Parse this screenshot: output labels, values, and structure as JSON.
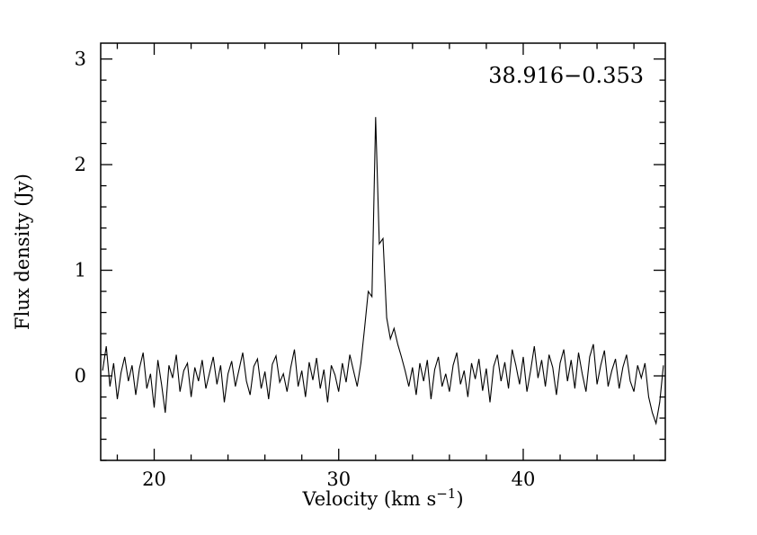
{
  "figure": {
    "background": "#ffffff",
    "source_label": "38.916−0.353"
  },
  "chart_data": {
    "type": "line",
    "title": "38.916−0.353",
    "xlabel": {
      "main": "Velocity (km s",
      "sup": "−1",
      "end": ")"
    },
    "ylabel": "Flux density (Jy)",
    "xlim": [
      17.1,
      47.7
    ],
    "ylim": [
      -0.8,
      3.15
    ],
    "x_ticks_major": [
      20,
      30,
      40
    ],
    "x_tick_labels": [
      "20",
      "30",
      "40"
    ],
    "y_ticks_major": [
      0,
      1,
      2,
      3
    ],
    "y_tick_labels": [
      "0",
      "1",
      "2",
      "3"
    ],
    "x_minor_step": 2,
    "y_minor_step": 0.2,
    "grid": false,
    "legend": false,
    "line_color": "#000000",
    "axes_color": "#000000",
    "x_start": 17.2,
    "x_step": 0.2,
    "flux": [
      0.05,
      0.28,
      -0.1,
      0.12,
      -0.22,
      0.03,
      0.18,
      -0.05,
      0.1,
      -0.18,
      0.07,
      0.22,
      -0.12,
      0.02,
      -0.3,
      0.15,
      -0.08,
      -0.35,
      0.1,
      -0.02,
      0.2,
      -0.15,
      0.05,
      0.12,
      -0.2,
      0.08,
      -0.05,
      0.15,
      -0.12,
      0.03,
      0.18,
      -0.08,
      0.1,
      -0.25,
      0.02,
      0.14,
      -0.1,
      0.06,
      0.22,
      -0.05,
      -0.18,
      0.09,
      0.16,
      -0.12,
      0.04,
      -0.22,
      0.11,
      0.19,
      -0.06,
      0.02,
      -0.15,
      0.08,
      0.25,
      -0.1,
      0.05,
      -0.2,
      0.13,
      -0.04,
      0.17,
      -0.12,
      0.06,
      -0.25,
      0.1,
      0.01,
      -0.15,
      0.12,
      -0.06,
      0.2,
      0.05,
      -0.1,
      0.12,
      0.45,
      0.8,
      0.75,
      2.45,
      1.25,
      1.3,
      0.55,
      0.35,
      0.45,
      0.3,
      0.18,
      0.05,
      -0.1,
      0.08,
      -0.18,
      0.12,
      -0.05,
      0.15,
      -0.22,
      0.06,
      0.18,
      -0.1,
      0.02,
      -0.15,
      0.1,
      0.22,
      -0.08,
      0.05,
      -0.2,
      0.12,
      -0.03,
      0.16,
      -0.14,
      0.07,
      -0.25,
      0.09,
      0.2,
      -0.05,
      0.13,
      -0.12,
      0.25,
      0.1,
      -0.08,
      0.18,
      -0.15,
      0.05,
      0.28,
      -0.02,
      0.15,
      -0.1,
      0.2,
      0.08,
      -0.18,
      0.12,
      0.25,
      -0.05,
      0.15,
      -0.12,
      0.22,
      0.02,
      -0.15,
      0.18,
      0.3,
      -0.08,
      0.1,
      0.24,
      -0.1,
      0.05,
      0.16,
      -0.12,
      0.08,
      0.2,
      -0.05,
      -0.15,
      0.1,
      -0.02,
      0.12,
      -0.2,
      -0.35,
      -0.45,
      -0.25,
      0.1
    ]
  }
}
